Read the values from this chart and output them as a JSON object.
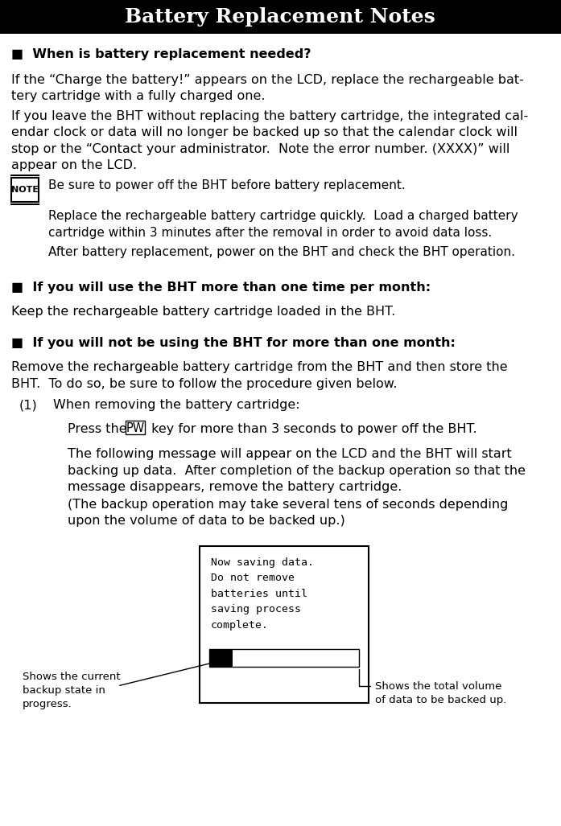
{
  "title": "Battery Replacement Notes",
  "bg_color": "#ffffff",
  "title_bg": "#000000",
  "title_color": "#ffffff",
  "heading1": "■  When is battery replacement needed?",
  "para1": "If the “Charge the battery!” appears on the LCD, replace the rechargeable bat-\ntery cartridge with a fully charged one.",
  "para2": "If you leave the BHT without replacing the battery cartridge, the integrated cal-\nendar clock or data will no longer be backed up so that the calendar clock will\nstop or the “Contact your administrator.  Note the error number. (XXXX)” will\nappear on the LCD.",
  "note_items": [
    "Be sure to power off the BHT before battery replacement.",
    "Replace the rechargeable battery cartridge quickly.  Load a charged battery\ncartridge within 3 minutes after the removal in order to avoid data loss.",
    "After battery replacement, power on the BHT and check the BHT operation."
  ],
  "heading2": "■  If you will use the BHT more than one time per month:",
  "para3": "Keep the rechargeable battery cartridge loaded in the BHT.",
  "heading3": "■  If you will not be using the BHT for more than one month:",
  "para4": "Remove the rechargeable battery cartridge from the BHT and then store the\nBHT.  To do so, be sure to follow the procedure given below.",
  "num1_label": "(1)",
  "num1_sub": "When removing the battery cartridge:",
  "press_before": "Press the ",
  "press_pw": "PW",
  "press_after": " key for more than 3 seconds to power off the BHT.",
  "following_msg": "The following message will appear on the LCD and the BHT will start\nbacking up data.  After completion of the backup operation so that the\nmessage disappears, remove the battery cartridge.",
  "backup_note": "(The backup operation may take several tens of seconds depending\nupon the volume of data to be backed up.)",
  "lcd_text": "Now saving data.\nDo not remove\nbatteries until\nsaving process\ncomplete.",
  "left_label": "Shows the current\nbackup state in\nprogress.",
  "right_label": "Shows the total volume\nof data to be backed up.",
  "title_fontsize": 18,
  "body_fontsize": 11.5,
  "heading_fontsize": 11.5,
  "note_fontsize": 11,
  "label_fontsize": 9.5,
  "lcd_fontsize": 9.5
}
